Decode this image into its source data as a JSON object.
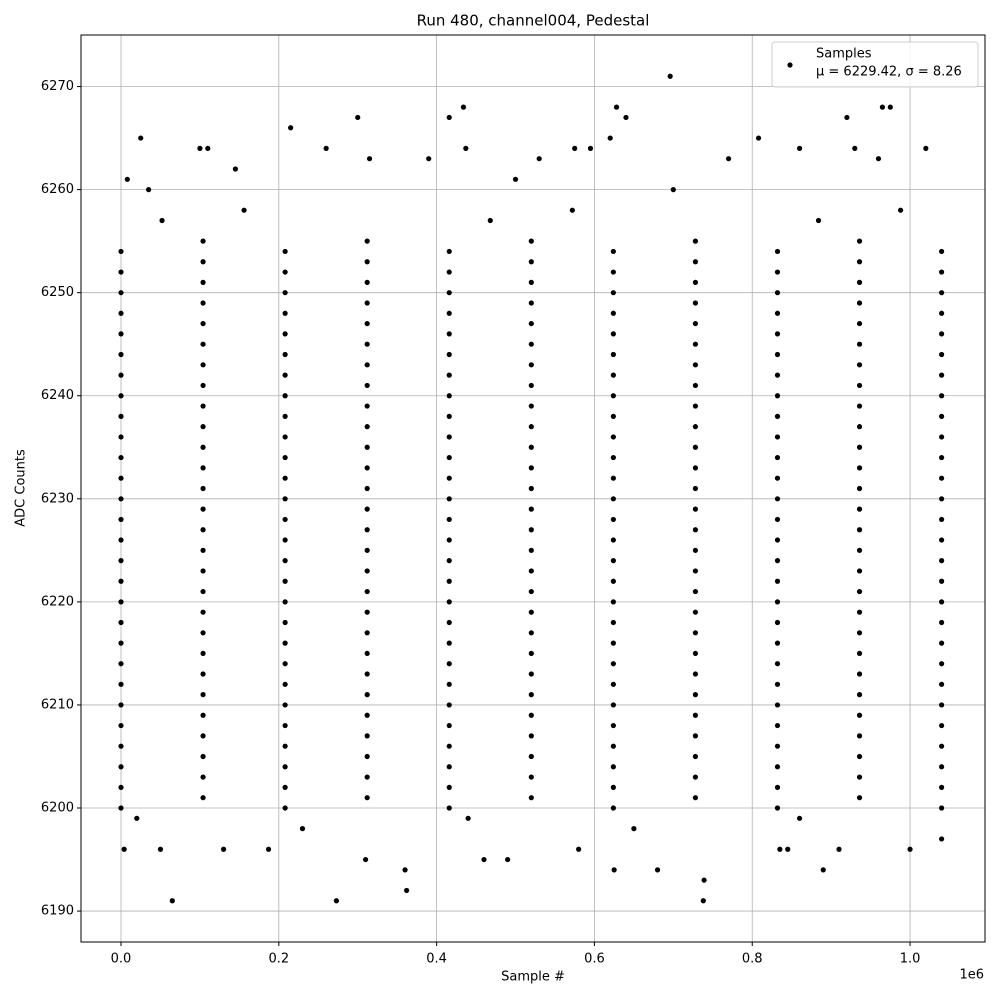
{
  "chart_data": {
    "type": "scatter",
    "title": "Run 480, channel004, Pedestal",
    "x_label": "Sample #",
    "y_label": "ADC Counts",
    "x_offset_label": "1e6",
    "xlim": [
      -50700,
      1095000
    ],
    "ylim": [
      6187,
      6275
    ],
    "xticks": [
      {
        "value": 0,
        "label": "0.0"
      },
      {
        "value": 200000,
        "label": "0.2"
      },
      {
        "value": 400000,
        "label": "0.4"
      },
      {
        "value": 600000,
        "label": "0.6"
      },
      {
        "value": 800000,
        "label": "0.8"
      },
      {
        "value": 1000000,
        "label": "1.0"
      }
    ],
    "yticks": [
      6190,
      6200,
      6210,
      6220,
      6230,
      6240,
      6250,
      6260,
      6270
    ],
    "grid": true,
    "legend": "upper right",
    "legend_note": "μ = 6229.42, σ = 8.26",
    "series": [
      {
        "name": "Samples",
        "color": "#000000",
        "x": [
          0,
          208000,
          416000,
          624000,
          832000,
          1040000,
          104000,
          312000,
          520000,
          728000,
          936000,
          0,
          208000,
          416000,
          624000,
          832000,
          1040000,
          104000,
          312000,
          520000,
          728000,
          936000,
          0,
          208000,
          416000,
          624000,
          832000,
          1040000,
          104000,
          312000,
          520000,
          728000,
          936000,
          0,
          208000,
          416000,
          624000,
          832000,
          1040000,
          104000,
          312000,
          520000,
          728000,
          936000,
          0,
          208000,
          416000,
          624000,
          832000,
          1040000,
          104000,
          312000,
          520000,
          728000,
          936000,
          0,
          208000,
          416000,
          624000,
          832000,
          1040000,
          104000,
          312000,
          520000,
          728000,
          936000,
          0,
          208000,
          416000,
          624000,
          832000,
          1040000,
          104000,
          312000,
          520000,
          728000,
          936000,
          0,
          208000,
          416000,
          624000,
          832000,
          1040000,
          104000,
          312000,
          520000,
          728000,
          936000,
          0,
          208000,
          416000,
          624000,
          832000,
          1040000,
          104000,
          312000,
          520000,
          728000,
          936000,
          0,
          208000,
          416000,
          624000,
          832000,
          1040000,
          104000,
          312000,
          520000,
          728000,
          936000,
          0,
          208000,
          416000,
          624000,
          832000,
          1040000,
          104000,
          312000,
          520000,
          728000,
          936000,
          0,
          208000,
          416000,
          624000,
          832000,
          1040000,
          104000,
          312000,
          520000,
          728000,
          936000,
          0,
          208000,
          416000,
          624000,
          832000,
          1040000,
          104000,
          312000,
          520000,
          728000,
          936000,
          0,
          208000,
          416000,
          624000,
          832000,
          1040000,
          104000,
          312000,
          520000,
          728000,
          936000,
          0,
          208000,
          416000,
          624000,
          832000,
          1040000,
          104000,
          312000,
          520000,
          728000,
          936000,
          0,
          208000,
          416000,
          624000,
          832000,
          1040000,
          104000,
          312000,
          520000,
          728000,
          936000,
          0,
          208000,
          416000,
          624000,
          832000,
          1040000,
          104000,
          312000,
          520000,
          728000,
          936000,
          0,
          208000,
          416000,
          624000,
          832000,
          1040000,
          104000,
          312000,
          520000,
          728000,
          936000,
          0,
          208000,
          416000,
          624000,
          832000,
          1040000,
          104000,
          312000,
          520000,
          728000,
          936000,
          0,
          208000,
          416000,
          624000,
          832000,
          1040000,
          104000,
          312000,
          520000,
          728000,
          936000,
          0,
          208000,
          416000,
          624000,
          832000,
          1040000,
          104000,
          312000,
          520000,
          728000,
          936000,
          0,
          208000,
          416000,
          624000,
          832000,
          1040000,
          104000,
          312000,
          520000,
          728000,
          936000,
          0,
          208000,
          416000,
          624000,
          832000,
          1040000,
          104000,
          312000,
          520000,
          728000,
          936000,
          0,
          208000,
          416000,
          624000,
          832000,
          1040000,
          104000,
          312000,
          520000,
          728000,
          936000,
          0,
          208000,
          416000,
          624000,
          832000,
          1040000,
          104000,
          312000,
          520000,
          728000,
          936000,
          0,
          208000,
          416000,
          624000,
          832000,
          1040000,
          104000,
          312000,
          520000,
          728000,
          936000,
          0,
          208000,
          416000,
          624000,
          832000,
          1040000,
          104000,
          312000,
          520000,
          728000,
          936000,
          0,
          208000,
          416000,
          624000,
          832000,
          1040000,
          104000,
          312000,
          520000,
          728000,
          936000,
          52000,
          468000,
          884000,
          156000,
          572000,
          988000,
          20000,
          440000,
          860000,
          230000,
          650000,
          4000,
          65000,
          25000,
          215000,
          300000,
          273000,
          362000,
          434000,
          416000,
          696000,
          628000,
          640000,
          738000,
          739000,
          808000,
          920000,
          965000,
          975000,
          890000,
          680000,
          625000,
          360000,
          460000,
          490000,
          310000,
          1040000,
          1000000,
          50000,
          130000,
          187000,
          580000,
          835000,
          845000,
          910000,
          100000,
          110000,
          260000,
          575000,
          595000,
          437000,
          860000,
          930000,
          1020000,
          8000,
          145000,
          700000,
          620000,
          35000,
          500000,
          530000,
          390000,
          315000,
          770000,
          960000
        ],
        "values": [
          6200,
          6200,
          6200,
          6200,
          6200,
          6200,
          6201,
          6201,
          6201,
          6201,
          6201,
          6202,
          6202,
          6202,
          6202,
          6202,
          6202,
          6203,
          6203,
          6203,
          6203,
          6203,
          6204,
          6204,
          6204,
          6204,
          6204,
          6204,
          6205,
          6205,
          6205,
          6205,
          6205,
          6206,
          6206,
          6206,
          6206,
          6206,
          6206,
          6207,
          6207,
          6207,
          6207,
          6207,
          6208,
          6208,
          6208,
          6208,
          6208,
          6208,
          6209,
          6209,
          6209,
          6209,
          6209,
          6210,
          6210,
          6210,
          6210,
          6210,
          6210,
          6211,
          6211,
          6211,
          6211,
          6211,
          6212,
          6212,
          6212,
          6212,
          6212,
          6212,
          6213,
          6213,
          6213,
          6213,
          6213,
          6214,
          6214,
          6214,
          6214,
          6214,
          6214,
          6215,
          6215,
          6215,
          6215,
          6215,
          6216,
          6216,
          6216,
          6216,
          6216,
          6216,
          6217,
          6217,
          6217,
          6217,
          6217,
          6218,
          6218,
          6218,
          6218,
          6218,
          6218,
          6219,
          6219,
          6219,
          6219,
          6219,
          6220,
          6220,
          6220,
          6220,
          6220,
          6220,
          6221,
          6221,
          6221,
          6221,
          6221,
          6222,
          6222,
          6222,
          6222,
          6222,
          6222,
          6223,
          6223,
          6223,
          6223,
          6223,
          6224,
          6224,
          6224,
          6224,
          6224,
          6224,
          6225,
          6225,
          6225,
          6225,
          6225,
          6226,
          6226,
          6226,
          6226,
          6226,
          6226,
          6227,
          6227,
          6227,
          6227,
          6227,
          6228,
          6228,
          6228,
          6228,
          6228,
          6228,
          6229,
          6229,
          6229,
          6229,
          6229,
          6230,
          6230,
          6230,
          6230,
          6230,
          6230,
          6231,
          6231,
          6231,
          6231,
          6231,
          6232,
          6232,
          6232,
          6232,
          6232,
          6232,
          6233,
          6233,
          6233,
          6233,
          6233,
          6234,
          6234,
          6234,
          6234,
          6234,
          6234,
          6235,
          6235,
          6235,
          6235,
          6235,
          6236,
          6236,
          6236,
          6236,
          6236,
          6236,
          6237,
          6237,
          6237,
          6237,
          6237,
          6238,
          6238,
          6238,
          6238,
          6238,
          6238,
          6239,
          6239,
          6239,
          6239,
          6239,
          6240,
          6240,
          6240,
          6240,
          6240,
          6240,
          6241,
          6241,
          6241,
          6241,
          6241,
          6242,
          6242,
          6242,
          6242,
          6242,
          6242,
          6243,
          6243,
          6243,
          6243,
          6243,
          6244,
          6244,
          6244,
          6244,
          6244,
          6244,
          6245,
          6245,
          6245,
          6245,
          6245,
          6246,
          6246,
          6246,
          6246,
          6246,
          6246,
          6247,
          6247,
          6247,
          6247,
          6247,
          6248,
          6248,
          6248,
          6248,
          6248,
          6248,
          6249,
          6249,
          6249,
          6249,
          6249,
          6250,
          6250,
          6250,
          6250,
          6250,
          6250,
          6251,
          6251,
          6251,
          6251,
          6251,
          6252,
          6252,
          6252,
          6252,
          6252,
          6252,
          6253,
          6253,
          6253,
          6253,
          6253,
          6254,
          6254,
          6254,
          6254,
          6254,
          6254,
          6255,
          6255,
          6255,
          6255,
          6255,
          6257,
          6257,
          6257,
          6258,
          6258,
          6258,
          6199,
          6199,
          6199,
          6198,
          6198,
          6196,
          6191,
          6265,
          6266,
          6267,
          6191,
          6192,
          6268,
          6267,
          6271,
          6268,
          6267,
          6191,
          6193,
          6265,
          6267,
          6268,
          6268,
          6194,
          6194,
          6194,
          6194,
          6195,
          6195,
          6195,
          6197,
          6196,
          6196,
          6196,
          6196,
          6196,
          6196,
          6196,
          6196,
          6264,
          6264,
          6264,
          6264,
          6264,
          6264,
          6264,
          6264,
          6264,
          6261,
          6262,
          6260,
          6265,
          6260,
          6261,
          6263,
          6263,
          6263,
          6263,
          6263
        ]
      }
    ]
  }
}
